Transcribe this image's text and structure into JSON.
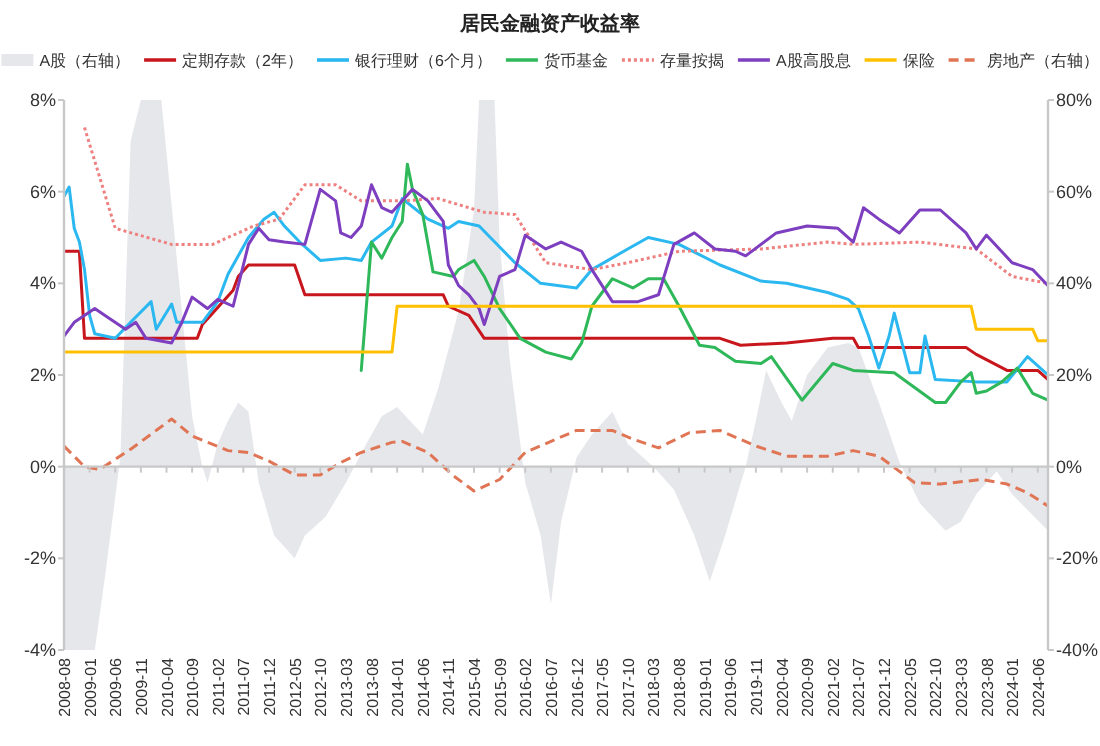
{
  "chart_data": {
    "type": "line",
    "title": "居民金融资产收益率",
    "legend": "top",
    "xlim": [
      "2008-08",
      "2024-08"
    ],
    "xticks": [
      "2008-08",
      "2009-01",
      "2009-06",
      "2009-11",
      "2010-04",
      "2010-09",
      "2011-02",
      "2011-07",
      "2011-12",
      "2012-05",
      "2012-10",
      "2013-03",
      "2013-08",
      "2014-01",
      "2014-06",
      "2014-11",
      "2015-04",
      "2015-09",
      "2016-02",
      "2016-07",
      "2016-12",
      "2017-05",
      "2017-10",
      "2018-03",
      "2018-08",
      "2019-01",
      "2019-06",
      "2019-11",
      "2020-04",
      "2020-09",
      "2021-02",
      "2021-07",
      "2021-12",
      "2022-05",
      "2022-10",
      "2023-03",
      "2023-08",
      "2024-01",
      "2024-06"
    ],
    "ylim": [
      -4,
      8
    ],
    "yticks": [
      {
        "value": -4,
        "label": "-4%"
      },
      {
        "value": -2,
        "label": "-2%"
      },
      {
        "value": 0,
        "label": "0%"
      },
      {
        "value": 2,
        "label": "2%"
      },
      {
        "value": 4,
        "label": "4%"
      },
      {
        "value": 6,
        "label": "6%"
      },
      {
        "value": 8,
        "label": "8%"
      }
    ],
    "y2lim": [
      -40,
      80
    ],
    "y2ticks": [
      {
        "value": -40,
        "label": "-40%"
      },
      {
        "value": -20,
        "label": "-20%"
      },
      {
        "value": 0,
        "label": "0%"
      },
      {
        "value": 20,
        "label": "20%"
      },
      {
        "value": 40,
        "label": "40%"
      },
      {
        "value": 60,
        "label": "60%"
      },
      {
        "value": 80,
        "label": "80%"
      }
    ],
    "series": [
      {
        "name": "A股（右轴）",
        "type": "area",
        "axis": "y2",
        "color": "#e6e7eb",
        "x": [
          "2008-08",
          "2009-02",
          "2009-04",
          "2009-07",
          "2009-09",
          "2009-11",
          "2010-03",
          "2010-07",
          "2010-09",
          "2010-11",
          "2010-12",
          "2011-02",
          "2011-04",
          "2011-06",
          "2011-08",
          "2011-10",
          "2012-01",
          "2012-05",
          "2012-07",
          "2012-11",
          "2013-03",
          "2013-07",
          "2013-10",
          "2014-01",
          "2014-06",
          "2014-09",
          "2015-01",
          "2015-04",
          "2015-05",
          "2015-08",
          "2015-09",
          "2015-11",
          "2016-02",
          "2016-05",
          "2016-07",
          "2016-09",
          "2016-12",
          "2017-03",
          "2017-07",
          "2017-10",
          "2018-03",
          "2018-07",
          "2018-11",
          "2019-02",
          "2019-05",
          "2019-09",
          "2019-11",
          "2020-01",
          "2020-04",
          "2020-06",
          "2020-09",
          "2021-01",
          "2021-05",
          "2021-07",
          "2021-11",
          "2022-03",
          "2022-07",
          "2022-12",
          "2023-03",
          "2023-06",
          "2023-10",
          "2024-01",
          "2024-08"
        ],
        "values": [
          -40,
          -40,
          -24,
          2,
          71,
          80,
          80,
          34,
          11,
          0,
          -3.5,
          5,
          10,
          14,
          12,
          -3.5,
          -15,
          -20,
          -15,
          -11,
          -3.5,
          5,
          11,
          13,
          7,
          17,
          34,
          56,
          80,
          80,
          49,
          23,
          -3.5,
          -15,
          -30,
          -12,
          2,
          7,
          12,
          5,
          0,
          -5,
          -15,
          -25,
          -15,
          0,
          10,
          21,
          14,
          10,
          20,
          26,
          27,
          26,
          14,
          1,
          -8,
          -14,
          -12,
          -6,
          -1,
          -6,
          -14
        ]
      },
      {
        "name": "定期存款（2年）",
        "type": "line",
        "color": "#c8161d",
        "x": [
          "2008-08",
          "2008-11",
          "2008-12",
          "2010-10",
          "2010-11",
          "2011-01",
          "2011-03",
          "2011-05",
          "2011-06",
          "2011-08",
          "2012-05",
          "2012-07",
          "2014-10",
          "2014-11",
          "2015-03",
          "2015-06",
          "2019-04",
          "2019-08",
          "2020-05",
          "2021-02",
          "2021-06",
          "2021-07",
          "2023-04",
          "2023-06",
          "2023-12",
          "2024-06",
          "2024-08"
        ],
        "values": [
          4.7,
          4.7,
          2.8,
          2.8,
          3.1,
          3.35,
          3.6,
          3.85,
          4.15,
          4.4,
          4.4,
          3.75,
          3.75,
          3.5,
          3.3,
          2.8,
          2.8,
          2.65,
          2.7,
          2.8,
          2.8,
          2.6,
          2.6,
          2.45,
          2.1,
          2.1,
          1.9
        ]
      },
      {
        "name": "银行理财（6个月）",
        "type": "line",
        "color": "#2bb8f0",
        "x": [
          "2008-08",
          "2008-09",
          "2008-10",
          "2008-11",
          "2008-12",
          "2009-01",
          "2009-02",
          "2009-04",
          "2009-06",
          "2009-09",
          "2010-01",
          "2010-02",
          "2010-05",
          "2010-06",
          "2010-11",
          "2011-02",
          "2011-04",
          "2011-08",
          "2011-11",
          "2012-01",
          "2012-03",
          "2012-06",
          "2012-10",
          "2013-03",
          "2013-06",
          "2013-08",
          "2013-12",
          "2014-02",
          "2014-07",
          "2014-11",
          "2015-01",
          "2015-05",
          "2015-12",
          "2016-05",
          "2016-12",
          "2017-03",
          "2017-10",
          "2018-02",
          "2018-08",
          "2019-04",
          "2019-12",
          "2020-05",
          "2021-01",
          "2021-05",
          "2021-07",
          "2021-09",
          "2021-11",
          "2022-01",
          "2022-02",
          "2022-05",
          "2022-07",
          "2022-08",
          "2022-10",
          "2023-06",
          "2023-12",
          "2024-04",
          "2024-08"
        ],
        "values": [
          5.9,
          6.1,
          5.2,
          4.9,
          4.3,
          3.3,
          2.9,
          2.85,
          2.8,
          3.15,
          3.6,
          3.0,
          3.55,
          3.15,
          3.15,
          3.6,
          4.2,
          5.0,
          5.4,
          5.55,
          5.25,
          4.9,
          4.5,
          4.55,
          4.5,
          4.9,
          5.25,
          5.85,
          5.4,
          5.2,
          5.35,
          5.25,
          4.45,
          4.0,
          3.9,
          4.3,
          4.75,
          5.0,
          4.85,
          4.4,
          4.05,
          4.0,
          3.8,
          3.65,
          3.45,
          2.85,
          2.15,
          2.85,
          3.35,
          2.05,
          2.05,
          2.85,
          1.9,
          1.85,
          1.85,
          2.4,
          2.0
        ]
      },
      {
        "name": "货币基金",
        "type": "line",
        "color": "#2fb85a",
        "x": [
          "2013-06",
          "2013-08",
          "2013-10",
          "2013-12",
          "2014-02",
          "2014-03",
          "2014-04",
          "2014-06",
          "2014-08",
          "2014-12",
          "2015-01",
          "2015-04",
          "2015-06",
          "2015-09",
          "2016-01",
          "2016-06",
          "2016-11",
          "2017-01",
          "2017-03",
          "2017-07",
          "2017-11",
          "2018-02",
          "2018-05",
          "2018-08",
          "2018-12",
          "2019-03",
          "2019-07",
          "2019-12",
          "2020-02",
          "2020-08",
          "2021-02",
          "2021-06",
          "2022-02",
          "2022-10",
          "2022-12",
          "2023-03",
          "2023-05",
          "2023-06",
          "2023-08",
          "2023-11",
          "2024-02",
          "2024-05",
          "2024-08"
        ],
        "values": [
          2.1,
          4.9,
          4.55,
          5.0,
          5.35,
          6.6,
          6.05,
          5.5,
          4.25,
          4.15,
          4.3,
          4.5,
          4.15,
          3.45,
          2.8,
          2.5,
          2.35,
          2.7,
          3.5,
          4.1,
          3.9,
          4.1,
          4.1,
          3.5,
          2.65,
          2.6,
          2.3,
          2.25,
          2.4,
          1.45,
          2.25,
          2.1,
          2.05,
          1.4,
          1.4,
          1.85,
          2.05,
          1.6,
          1.65,
          1.85,
          2.15,
          1.6,
          1.45
        ]
      },
      {
        "name": "存量按揭",
        "type": "line",
        "line_style": "dotted",
        "color": "#ee8080",
        "x": [
          "2008-12",
          "2009-06",
          "2010-05",
          "2011-01",
          "2011-09",
          "2012-02",
          "2012-07",
          "2013-01",
          "2013-06",
          "2014-02",
          "2014-09",
          "2015-06",
          "2015-12",
          "2016-06",
          "2017-03",
          "2017-10",
          "2018-08",
          "2019-12",
          "2021-01",
          "2021-06",
          "2022-07",
          "2023-06",
          "2024-01",
          "2024-08"
        ],
        "values": [
          7.4,
          5.2,
          4.85,
          4.85,
          5.25,
          5.4,
          6.15,
          6.15,
          5.8,
          5.8,
          5.85,
          5.55,
          5.5,
          4.45,
          4.3,
          4.45,
          4.7,
          4.75,
          4.9,
          4.85,
          4.9,
          4.75,
          4.15,
          4.0
        ]
      },
      {
        "name": "A股高股息",
        "type": "line",
        "color": "#7d3fbf",
        "x": [
          "2008-08",
          "2008-10",
          "2009-02",
          "2009-04",
          "2009-08",
          "2009-10",
          "2009-12",
          "2010-05",
          "2010-07",
          "2010-09",
          "2010-12",
          "2011-02",
          "2011-05",
          "2011-08",
          "2011-10",
          "2011-12",
          "2012-03",
          "2012-07",
          "2012-10",
          "2013-01",
          "2013-02",
          "2013-04",
          "2013-06",
          "2013-08",
          "2013-10",
          "2013-12",
          "2014-02",
          "2014-04",
          "2014-07",
          "2014-10",
          "2014-11",
          "2015-01",
          "2015-03",
          "2015-05",
          "2015-06",
          "2015-09",
          "2015-12",
          "2016-02",
          "2016-06",
          "2016-09",
          "2017-01",
          "2017-03",
          "2017-07",
          "2017-12",
          "2018-04",
          "2018-07",
          "2018-11",
          "2019-03",
          "2019-07",
          "2019-09",
          "2020-03",
          "2020-09",
          "2021-03",
          "2021-06",
          "2021-08",
          "2021-11",
          "2022-03",
          "2022-07",
          "2022-11",
          "2023-04",
          "2023-06",
          "2023-08",
          "2024-01",
          "2024-05",
          "2024-08"
        ],
        "values": [
          2.85,
          3.15,
          3.45,
          3.3,
          3.0,
          3.15,
          2.8,
          2.7,
          3.15,
          3.7,
          3.45,
          3.65,
          3.5,
          4.85,
          5.2,
          4.95,
          4.9,
          4.85,
          6.05,
          5.8,
          5.1,
          5.0,
          5.25,
          6.15,
          5.65,
          5.55,
          5.8,
          6.05,
          5.8,
          5.35,
          4.4,
          3.95,
          3.75,
          3.45,
          3.1,
          4.15,
          4.3,
          5.05,
          4.75,
          4.9,
          4.7,
          4.3,
          3.6,
          3.6,
          3.75,
          4.85,
          5.1,
          4.75,
          4.7,
          4.6,
          5.1,
          5.25,
          5.2,
          4.9,
          5.65,
          5.4,
          5.1,
          5.6,
          5.6,
          5.1,
          4.75,
          5.05,
          4.45,
          4.3,
          3.95
        ]
      },
      {
        "name": "保险",
        "type": "line",
        "color": "#ffc000",
        "x": [
          "2008-08",
          "2013-12",
          "2014-01",
          "2023-05",
          "2023-06",
          "2024-05",
          "2024-06",
          "2024-08"
        ],
        "values": [
          2.5,
          2.5,
          3.5,
          3.5,
          3.0,
          3.0,
          2.75,
          2.75
        ]
      },
      {
        "name": "房地产（右轴）",
        "type": "line",
        "axis": "y2",
        "line_style": "dashed",
        "color": "#e07555",
        "x": [
          "2008-08",
          "2008-12",
          "2009-03",
          "2009-09",
          "2010-05",
          "2010-09",
          "2011-04",
          "2011-08",
          "2011-12",
          "2012-05",
          "2012-10",
          "2013-02",
          "2013-06",
          "2013-12",
          "2014-02",
          "2014-07",
          "2014-12",
          "2015-04",
          "2015-09",
          "2016-02",
          "2016-08",
          "2016-12",
          "2017-07",
          "2017-11",
          "2018-04",
          "2018-10",
          "2019-04",
          "2019-11",
          "2020-05",
          "2021-01",
          "2021-06",
          "2021-11",
          "2022-06",
          "2022-11",
          "2023-07",
          "2023-12",
          "2024-04",
          "2024-08"
        ],
        "values": [
          4.5,
          0,
          -0.6,
          3.8,
          10.4,
          6.7,
          3.5,
          3.1,
          1.2,
          -1.8,
          -1.8,
          0.9,
          3.1,
          5.3,
          5.5,
          3.1,
          -2,
          -5.3,
          -2.8,
          3.1,
          6,
          7.9,
          7.9,
          6,
          4.1,
          7.4,
          7.9,
          4.5,
          2.3,
          2.3,
          3.5,
          2.3,
          -3.5,
          -3.8,
          -2.8,
          -3.8,
          -5.7,
          -8.6
        ]
      }
    ]
  }
}
